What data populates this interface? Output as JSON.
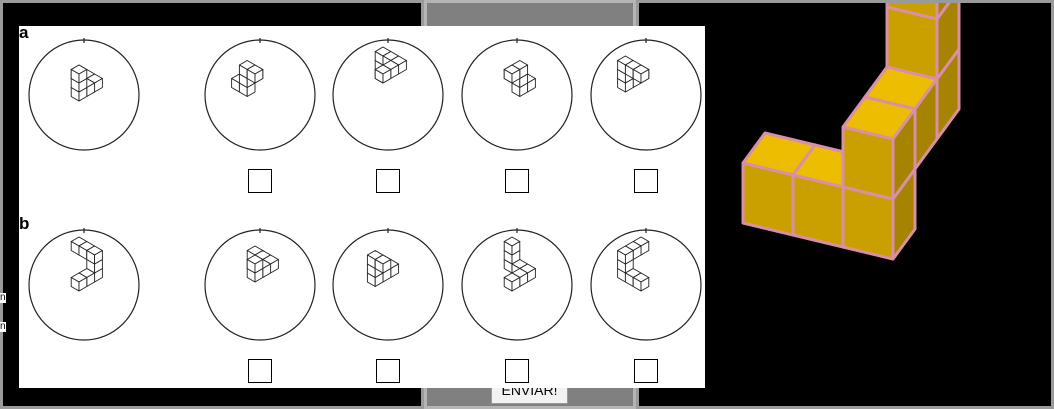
{
  "test_sheet": {
    "sections": [
      {
        "label": "a",
        "reference_icon": "reference-block-figure-icon",
        "options": [
          {
            "icon": "option-block-figure-icon",
            "checked": false
          },
          {
            "icon": "option-block-figure-icon",
            "checked": false
          },
          {
            "icon": "option-block-figure-icon",
            "checked": false
          },
          {
            "icon": "option-block-figure-icon",
            "checked": false
          }
        ]
      },
      {
        "label": "b",
        "reference_icon": "reference-block-figure-icon",
        "options": [
          {
            "icon": "option-block-figure-icon",
            "checked": false
          },
          {
            "icon": "option-block-figure-icon",
            "checked": false
          },
          {
            "icon": "option-block-figure-icon",
            "checked": false
          },
          {
            "icon": "option-block-figure-icon",
            "checked": false
          }
        ]
      }
    ]
  },
  "viewer": {
    "icon": "3d-cube-model-icon",
    "cube_color": "#e6b800",
    "edge_color": "#d98fa8",
    "background": "#000000"
  },
  "left_edge_text": [
    "n",
    "n"
  ],
  "submit_label": "ENVIAR!"
}
